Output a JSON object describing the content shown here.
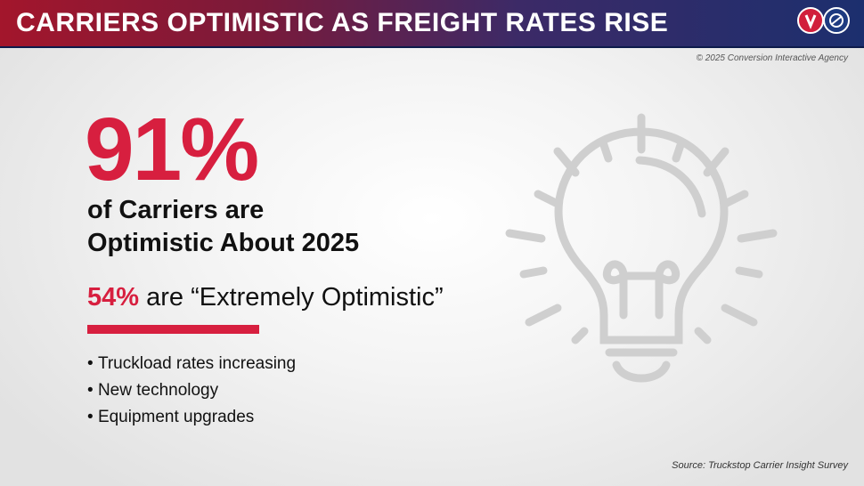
{
  "header": {
    "title": "CARRIERS OPTIMISTIC AS FREIGHT RATES RISE"
  },
  "copyright": "© 2025 Conversion Interactive Agency",
  "stat": {
    "big": "91%",
    "line1": "of Carriers are",
    "line2": "Optimistic About 2025"
  },
  "extreme": {
    "pct": "54%",
    "text": " are “Extremely Optimistic”"
  },
  "bullets": [
    "Truckload rates increasing",
    "New technology",
    "Equipment upgrades"
  ],
  "source": "Source: Truckstop Carrier Insight Survey",
  "colors": {
    "accent": "#d71f3f",
    "header_left": "#a3162c",
    "header_right": "#1c2f6e"
  },
  "icons": [
    "logo-icon",
    "lightbulb-icon"
  ]
}
